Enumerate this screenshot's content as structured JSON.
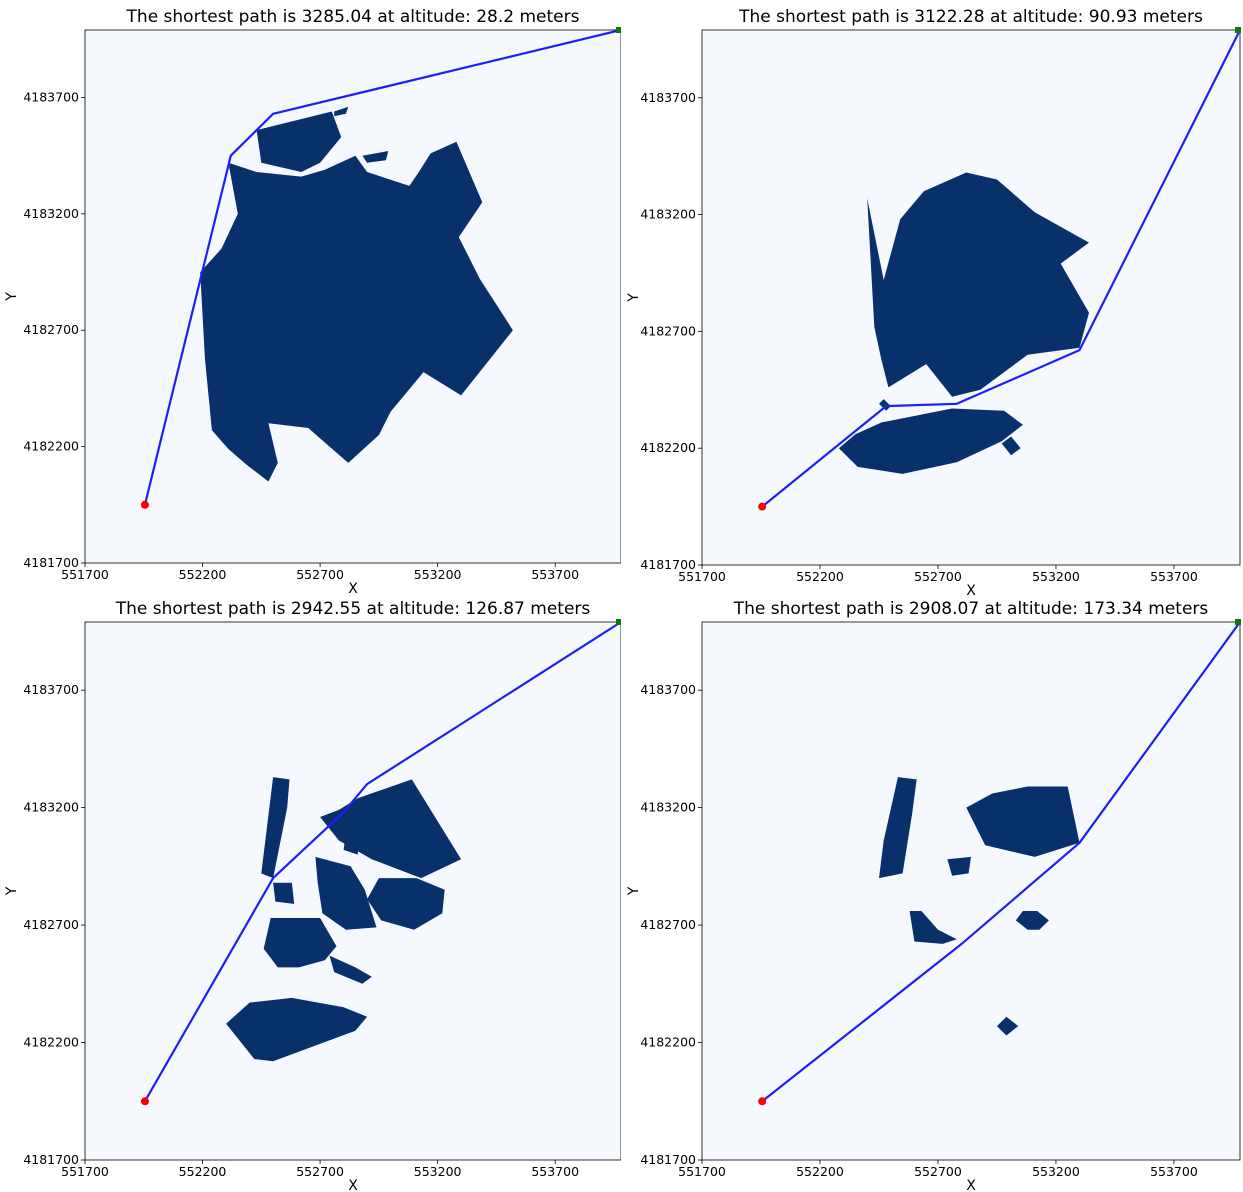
{
  "colors": {
    "background": "#f5f9fe",
    "obstacle": "#08306b",
    "path": "#1f1ff5",
    "start": "#ff0000",
    "goal": "#0a7a0a"
  },
  "chart_data": [
    {
      "type": "scatter",
      "title": "The shortest path is 3285.04 at altitude: 28.2 meters",
      "xlabel": "X",
      "ylabel": "Y",
      "xlim": [
        551700,
        553980
      ],
      "ylim": [
        4181700,
        4183990
      ],
      "xticks": [
        551700,
        552200,
        552700,
        553200,
        553700
      ],
      "yticks": [
        4181700,
        4182200,
        4182700,
        4183200,
        4183700
      ],
      "start": {
        "x": 551955,
        "y": 4181950,
        "color": "red"
      },
      "goal": {
        "x": 553980,
        "y": 4183990,
        "color": "green"
      },
      "path": [
        [
          551955,
          4181950
        ],
        [
          552320,
          4183450
        ],
        [
          552500,
          4183630
        ],
        [
          553980,
          4183990
        ]
      ],
      "obstacles": [
        [
          [
            552430,
            4183560
          ],
          [
            552750,
            4183640
          ],
          [
            552790,
            4183530
          ],
          [
            552700,
            4183420
          ],
          [
            552620,
            4183380
          ],
          [
            552450,
            4183420
          ]
        ],
        [
          [
            552760,
            4183640
          ],
          [
            552820,
            4183660
          ],
          [
            552810,
            4183630
          ],
          [
            552760,
            4183620
          ]
        ],
        [
          [
            552880,
            4183450
          ],
          [
            552990,
            4183470
          ],
          [
            552980,
            4183430
          ],
          [
            552900,
            4183420
          ]
        ],
        [
          [
            552310,
            4183420
          ],
          [
            552430,
            4183380
          ],
          [
            552620,
            4183360
          ],
          [
            552720,
            4183390
          ],
          [
            552850,
            4183450
          ],
          [
            552900,
            4183380
          ],
          [
            553080,
            4183320
          ],
          [
            553120,
            4183380
          ],
          [
            553170,
            4183460
          ],
          [
            553280,
            4183510
          ],
          [
            553390,
            4183250
          ],
          [
            553290,
            4183100
          ],
          [
            553380,
            4182920
          ],
          [
            553520,
            4182700
          ],
          [
            553300,
            4182420
          ],
          [
            553140,
            4182520
          ],
          [
            553000,
            4182350
          ],
          [
            552950,
            4182250
          ],
          [
            552820,
            4182130
          ],
          [
            552740,
            4182200
          ],
          [
            552650,
            4182280
          ],
          [
            552480,
            4182300
          ],
          [
            552520,
            4182130
          ],
          [
            552480,
            4182050
          ],
          [
            552390,
            4182120
          ],
          [
            552310,
            4182190
          ],
          [
            552240,
            4182270
          ],
          [
            552210,
            4182580
          ],
          [
            552190,
            4182950
          ],
          [
            552280,
            4183050
          ],
          [
            552350,
            4183200
          ]
        ],
        [
          [
            552800,
            4182420
          ],
          [
            552900,
            4182400
          ],
          [
            552880,
            4182320
          ],
          [
            552780,
            4182310
          ],
          [
            552760,
            4182360
          ]
        ]
      ]
    },
    {
      "type": "scatter",
      "title": "The shortest path is 3122.28 at altitude: 90.93 meters",
      "xlabel": "X",
      "ylabel": "Y",
      "xlim": [
        551700,
        553980
      ],
      "ylim": [
        4181700,
        4183990
      ],
      "xticks": [
        551700,
        552200,
        552700,
        553200,
        553700
      ],
      "yticks": [
        4181700,
        4182200,
        4182700,
        4183200,
        4183700
      ],
      "start": {
        "x": 551955,
        "y": 4181950,
        "color": "red"
      },
      "goal": {
        "x": 553980,
        "y": 4183990,
        "color": "green"
      },
      "path": [
        [
          551955,
          4181950
        ],
        [
          552480,
          4182380
        ],
        [
          552780,
          4182390
        ],
        [
          553300,
          4182620
        ],
        [
          553980,
          4183990
        ]
      ],
      "obstacles": [
        [
          [
            552400,
            4183270
          ],
          [
            552470,
            4182920
          ],
          [
            552540,
            4183180
          ],
          [
            552640,
            4183300
          ],
          [
            552820,
            4183380
          ],
          [
            552950,
            4183350
          ],
          [
            553110,
            4183210
          ],
          [
            553340,
            4183080
          ],
          [
            553220,
            4182990
          ],
          [
            553340,
            4182780
          ],
          [
            553300,
            4182630
          ],
          [
            553080,
            4182600
          ],
          [
            552880,
            4182450
          ],
          [
            552760,
            4182420
          ],
          [
            552650,
            4182560
          ],
          [
            552490,
            4182460
          ],
          [
            552460,
            4182580
          ],
          [
            552430,
            4182720
          ]
        ],
        [
          [
            552280,
            4182200
          ],
          [
            552360,
            4182120
          ],
          [
            552550,
            4182090
          ],
          [
            552780,
            4182140
          ],
          [
            552970,
            4182230
          ],
          [
            553060,
            4182300
          ],
          [
            552980,
            4182360
          ],
          [
            552760,
            4182370
          ],
          [
            552460,
            4182310
          ],
          [
            552350,
            4182260
          ]
        ],
        [
          [
            552450,
            4182390
          ],
          [
            552480,
            4182360
          ],
          [
            552500,
            4182380
          ],
          [
            552470,
            4182410
          ]
        ],
        [
          [
            552970,
            4182220
          ],
          [
            553010,
            4182170
          ],
          [
            553050,
            4182200
          ],
          [
            553010,
            4182250
          ]
        ]
      ]
    },
    {
      "type": "scatter",
      "title": "The shortest path is 2942.55 at altitude: 126.87 meters",
      "xlabel": "X",
      "ylabel": "Y",
      "xlim": [
        551700,
        553980
      ],
      "ylim": [
        4181700,
        4183990
      ],
      "xticks": [
        551700,
        552200,
        552700,
        553200,
        553700
      ],
      "yticks": [
        4181700,
        4182200,
        4182700,
        4183200,
        4183700
      ],
      "start": {
        "x": 551955,
        "y": 4181950,
        "color": "red"
      },
      "goal": {
        "x": 553980,
        "y": 4183990,
        "color": "green"
      },
      "path": [
        [
          551955,
          4181950
        ],
        [
          552500,
          4182900
        ],
        [
          552800,
          4183180
        ],
        [
          552900,
          4183300
        ],
        [
          553980,
          4183990
        ]
      ],
      "obstacles": [
        [
          [
            552500,
            4183330
          ],
          [
            552570,
            4183320
          ],
          [
            552560,
            4183200
          ],
          [
            552500,
            4182900
          ],
          [
            552450,
            4182920
          ]
        ],
        [
          [
            552700,
            4183160
          ],
          [
            552780,
            4183190
          ],
          [
            552860,
            4183240
          ],
          [
            553090,
            4183320
          ],
          [
            553300,
            4182980
          ],
          [
            553130,
            4182900
          ],
          [
            552920,
            4182980
          ],
          [
            552780,
            4183060
          ]
        ],
        [
          [
            552800,
            4183020
          ],
          [
            552860,
            4183000
          ],
          [
            552870,
            4183090
          ],
          [
            552810,
            4183090
          ]
        ],
        [
          [
            552680,
            4182990
          ],
          [
            552830,
            4182950
          ],
          [
            552890,
            4182850
          ],
          [
            552940,
            4182690
          ],
          [
            552810,
            4182680
          ],
          [
            552710,
            4182750
          ],
          [
            552690,
            4182880
          ]
        ],
        [
          [
            552950,
            4182900
          ],
          [
            553110,
            4182900
          ],
          [
            553230,
            4182850
          ],
          [
            553220,
            4182750
          ],
          [
            553100,
            4182680
          ],
          [
            552960,
            4182720
          ],
          [
            552900,
            4182810
          ]
        ],
        [
          [
            552500,
            4182880
          ],
          [
            552580,
            4182880
          ],
          [
            552590,
            4182790
          ],
          [
            552510,
            4182800
          ]
        ],
        [
          [
            552490,
            4182730
          ],
          [
            552700,
            4182730
          ],
          [
            552770,
            4182610
          ],
          [
            552720,
            4182550
          ],
          [
            552610,
            4182520
          ],
          [
            552520,
            4182520
          ],
          [
            552460,
            4182600
          ]
        ],
        [
          [
            552740,
            4182570
          ],
          [
            552850,
            4182520
          ],
          [
            552920,
            4182480
          ],
          [
            552880,
            4182450
          ],
          [
            552760,
            4182500
          ]
        ],
        [
          [
            552300,
            4182280
          ],
          [
            552400,
            4182370
          ],
          [
            552580,
            4182390
          ],
          [
            552800,
            4182350
          ],
          [
            552900,
            4182310
          ],
          [
            552850,
            4182250
          ],
          [
            552500,
            4182120
          ],
          [
            552420,
            4182130
          ]
        ]
      ]
    },
    {
      "type": "scatter",
      "title": "The shortest path is 2908.07 at altitude: 173.34 meters",
      "xlabel": "X",
      "ylabel": "Y",
      "xlim": [
        551700,
        553980
      ],
      "ylim": [
        4181700,
        4183990
      ],
      "xticks": [
        551700,
        552200,
        552700,
        553200,
        553700
      ],
      "yticks": [
        4181700,
        4182200,
        4182700,
        4183200,
        4183700
      ],
      "start": {
        "x": 551955,
        "y": 4181950,
        "color": "red"
      },
      "goal": {
        "x": 553980,
        "y": 4183990,
        "color": "green"
      },
      "path": [
        [
          551955,
          4181950
        ],
        [
          552800,
          4182620
        ],
        [
          553300,
          4183050
        ],
        [
          553980,
          4183990
        ]
      ],
      "obstacles": [
        [
          [
            552530,
            4183330
          ],
          [
            552610,
            4183320
          ],
          [
            552590,
            4183170
          ],
          [
            552550,
            4182920
          ],
          [
            552450,
            4182900
          ],
          [
            552470,
            4183060
          ]
        ],
        [
          [
            552820,
            4183200
          ],
          [
            552930,
            4183260
          ],
          [
            553080,
            4183290
          ],
          [
            553250,
            4183290
          ],
          [
            553300,
            4183050
          ],
          [
            553110,
            4182990
          ],
          [
            552900,
            4183040
          ]
        ],
        [
          [
            552740,
            4182980
          ],
          [
            552840,
            4182990
          ],
          [
            552830,
            4182920
          ],
          [
            552760,
            4182910
          ]
        ],
        [
          [
            552580,
            4182760
          ],
          [
            552630,
            4182760
          ],
          [
            552700,
            4182680
          ],
          [
            552780,
            4182640
          ],
          [
            552720,
            4182620
          ],
          [
            552600,
            4182630
          ]
        ],
        [
          [
            553060,
            4182760
          ],
          [
            553120,
            4182760
          ],
          [
            553170,
            4182720
          ],
          [
            553130,
            4182680
          ],
          [
            553080,
            4182680
          ],
          [
            553030,
            4182720
          ]
        ],
        [
          [
            552950,
            4182270
          ],
          [
            552990,
            4182310
          ],
          [
            553040,
            4182270
          ],
          [
            552990,
            4182230
          ]
        ]
      ]
    }
  ]
}
